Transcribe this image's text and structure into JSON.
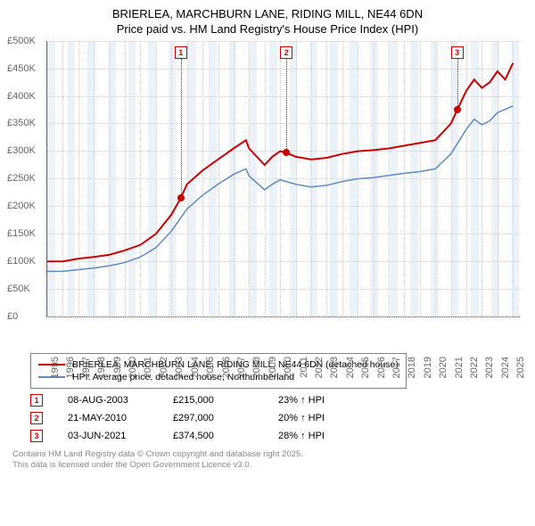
{
  "title": {
    "line1": "BRIERLEA, MARCHBURN LANE, RIDING MILL, NE44 6DN",
    "line2": "Price paid vs. HM Land Registry's House Price Index (HPI)"
  },
  "chart": {
    "type": "line",
    "background_color": "#ffffff",
    "grid_color": "#d0d0d0",
    "shade_color": "rgba(185,205,230,0.25)",
    "x_start": 1995,
    "x_end": 2025.5,
    "ylim": [
      0,
      500000
    ],
    "ytick_step": 50000,
    "y_labels": [
      "£0",
      "£50K",
      "£100K",
      "£150K",
      "£200K",
      "£250K",
      "£300K",
      "£350K",
      "£400K",
      "£450K",
      "£500K"
    ],
    "x_labels": [
      "1995",
      "1996",
      "1997",
      "1998",
      "1999",
      "2000",
      "2001",
      "2002",
      "2003",
      "2004",
      "2005",
      "2006",
      "2007",
      "2008",
      "2009",
      "2010",
      "2011",
      "2012",
      "2013",
      "2014",
      "2015",
      "2016",
      "2017",
      "2018",
      "2019",
      "2020",
      "2021",
      "2022",
      "2023",
      "2024",
      "2025"
    ],
    "series": [
      {
        "name": "property",
        "color": "#cc0000",
        "width": 2,
        "label": "BRIERLEA, MARCHBURN LANE, RIDING MILL, NE44 6DN (detached house)",
        "points": [
          [
            1995,
            100000
          ],
          [
            1996,
            100000
          ],
          [
            1997,
            105000
          ],
          [
            1998,
            108000
          ],
          [
            1999,
            112000
          ],
          [
            2000,
            120000
          ],
          [
            2001,
            130000
          ],
          [
            2002,
            150000
          ],
          [
            2003,
            185000
          ],
          [
            2003.6,
            215000
          ],
          [
            2004,
            240000
          ],
          [
            2005,
            265000
          ],
          [
            2006,
            285000
          ],
          [
            2007,
            305000
          ],
          [
            2007.8,
            320000
          ],
          [
            2008,
            305000
          ],
          [
            2009,
            275000
          ],
          [
            2009.5,
            290000
          ],
          [
            2010,
            300000
          ],
          [
            2010.4,
            297000
          ],
          [
            2011,
            290000
          ],
          [
            2012,
            285000
          ],
          [
            2013,
            288000
          ],
          [
            2014,
            295000
          ],
          [
            2015,
            300000
          ],
          [
            2016,
            302000
          ],
          [
            2017,
            305000
          ],
          [
            2018,
            310000
          ],
          [
            2019,
            315000
          ],
          [
            2020,
            320000
          ],
          [
            2021,
            350000
          ],
          [
            2021.4,
            374500
          ],
          [
            2022,
            410000
          ],
          [
            2022.5,
            430000
          ],
          [
            2023,
            415000
          ],
          [
            2023.5,
            425000
          ],
          [
            2024,
            445000
          ],
          [
            2024.5,
            430000
          ],
          [
            2025,
            460000
          ]
        ]
      },
      {
        "name": "hpi",
        "color": "#5b8ac6",
        "width": 1.5,
        "label": "HPI: Average price, detached house, Northumberland",
        "points": [
          [
            1995,
            82000
          ],
          [
            1996,
            82000
          ],
          [
            1997,
            85000
          ],
          [
            1998,
            88000
          ],
          [
            1999,
            92000
          ],
          [
            2000,
            98000
          ],
          [
            2001,
            108000
          ],
          [
            2002,
            125000
          ],
          [
            2003,
            155000
          ],
          [
            2004,
            195000
          ],
          [
            2005,
            220000
          ],
          [
            2006,
            240000
          ],
          [
            2007,
            258000
          ],
          [
            2007.8,
            268000
          ],
          [
            2008,
            255000
          ],
          [
            2009,
            230000
          ],
          [
            2009.5,
            240000
          ],
          [
            2010,
            248000
          ],
          [
            2011,
            240000
          ],
          [
            2012,
            235000
          ],
          [
            2013,
            238000
          ],
          [
            2014,
            245000
          ],
          [
            2015,
            250000
          ],
          [
            2016,
            252000
          ],
          [
            2017,
            256000
          ],
          [
            2018,
            260000
          ],
          [
            2019,
            263000
          ],
          [
            2020,
            268000
          ],
          [
            2021,
            295000
          ],
          [
            2022,
            340000
          ],
          [
            2022.5,
            358000
          ],
          [
            2023,
            348000
          ],
          [
            2023.5,
            355000
          ],
          [
            2024,
            370000
          ],
          [
            2025,
            382000
          ]
        ]
      }
    ],
    "shaded_bands": [
      {
        "x": 1995,
        "w": 0.5
      },
      {
        "x": 1996.3,
        "w": 0.5
      },
      {
        "x": 1997.6,
        "w": 0.5
      },
      {
        "x": 1998.9,
        "w": 0.5
      },
      {
        "x": 2000.2,
        "w": 0.5
      },
      {
        "x": 2001.5,
        "w": 0.5
      },
      {
        "x": 2002.8,
        "w": 0.5
      },
      {
        "x": 2004.1,
        "w": 0.5
      },
      {
        "x": 2005.4,
        "w": 0.5
      },
      {
        "x": 2006.7,
        "w": 0.5
      },
      {
        "x": 2008.0,
        "w": 0.5
      },
      {
        "x": 2009.3,
        "w": 0.5
      },
      {
        "x": 2010.6,
        "w": 0.5
      },
      {
        "x": 2011.9,
        "w": 0.5
      },
      {
        "x": 2013.2,
        "w": 0.5
      },
      {
        "x": 2014.5,
        "w": 0.5
      },
      {
        "x": 2015.8,
        "w": 0.5
      },
      {
        "x": 2017.1,
        "w": 0.5
      },
      {
        "x": 2018.4,
        "w": 0.5
      },
      {
        "x": 2019.7,
        "w": 0.5
      },
      {
        "x": 2021.0,
        "w": 0.5
      },
      {
        "x": 2022.3,
        "w": 0.5
      },
      {
        "x": 2023.6,
        "w": 0.5
      },
      {
        "x": 2024.9,
        "w": 0.5
      }
    ],
    "markers": [
      {
        "n": "1",
        "x": 2003.6,
        "y": 215000
      },
      {
        "n": "2",
        "x": 2010.4,
        "y": 297000
      },
      {
        "n": "3",
        "x": 2021.4,
        "y": 374500
      }
    ]
  },
  "legend": {
    "items": [
      {
        "color": "#cc0000",
        "key": "chart.series.0.label"
      },
      {
        "color": "#5b8ac6",
        "key": "chart.series.1.label"
      }
    ]
  },
  "transactions": [
    {
      "n": "1",
      "date": "08-AUG-2003",
      "price": "£215,000",
      "diff": "23% ↑ HPI"
    },
    {
      "n": "2",
      "date": "21-MAY-2010",
      "price": "£297,000",
      "diff": "20% ↑ HPI"
    },
    {
      "n": "3",
      "date": "03-JUN-2021",
      "price": "£374,500",
      "diff": "28% ↑ HPI"
    }
  ],
  "footer": {
    "line1": "Contains HM Land Registry data © Crown copyright and database right 2025.",
    "line2": "This data is licensed under the Open Government Licence v3.0."
  }
}
